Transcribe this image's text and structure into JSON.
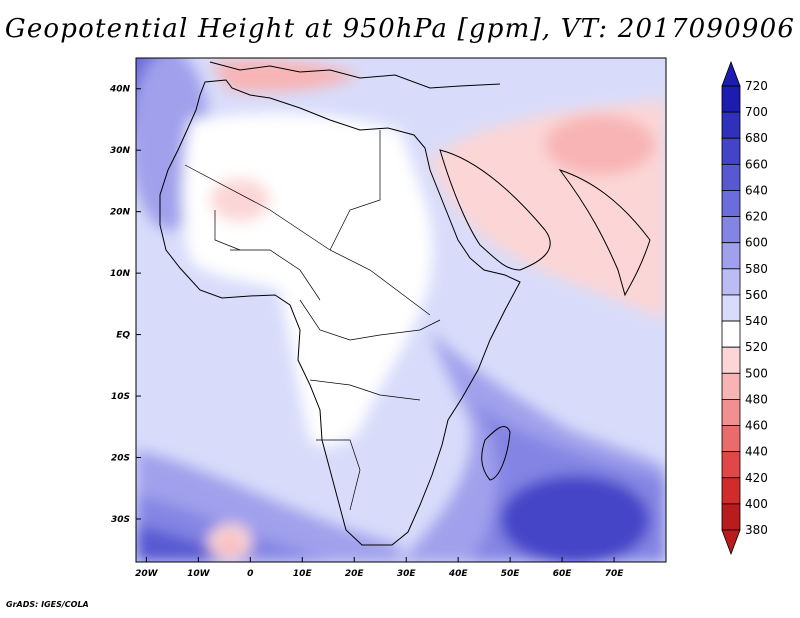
{
  "title": "Geopotential Height at 950hPa [gpm], VT: 2017090906",
  "credit": "GrADS: IGES/COLA",
  "map": {
    "lon_range": [
      -22,
      80
    ],
    "lat_range": [
      -37,
      45
    ],
    "lat_ticks": [
      {
        "value": 40,
        "label": "40N"
      },
      {
        "value": 30,
        "label": "30N"
      },
      {
        "value": 20,
        "label": "20N"
      },
      {
        "value": 10,
        "label": "10N"
      },
      {
        "value": 0,
        "label": "EQ"
      },
      {
        "value": -10,
        "label": "10S"
      },
      {
        "value": -20,
        "label": "20S"
      },
      {
        "value": -30,
        "label": "30S"
      }
    ],
    "lon_ticks": [
      {
        "value": -20,
        "label": "20W"
      },
      {
        "value": -10,
        "label": "10W"
      },
      {
        "value": 0,
        "label": "0"
      },
      {
        "value": 10,
        "label": "10E"
      },
      {
        "value": 20,
        "label": "20E"
      },
      {
        "value": 30,
        "label": "30E"
      },
      {
        "value": 40,
        "label": "40E"
      },
      {
        "value": 50,
        "label": "50E"
      },
      {
        "value": 60,
        "label": "60E"
      },
      {
        "value": 70,
        "label": "70E"
      }
    ],
    "field_base_color": "#d8dcfa"
  },
  "colorbar": {
    "levels": [
      720,
      700,
      680,
      660,
      640,
      620,
      600,
      580,
      560,
      540,
      520,
      500,
      480,
      460,
      440,
      420,
      400,
      380
    ],
    "colors": [
      "#1c1cb0",
      "#3030bc",
      "#4444c8",
      "#5858d2",
      "#6c6cdc",
      "#8484e4",
      "#a0a0ec",
      "#bcbcf4",
      "#d8dcfa",
      "#ffffff",
      "#fcd6d6",
      "#f8b4b4",
      "#f09090",
      "#e86c6c",
      "#e04848",
      "#d02c2c",
      "#b81c1c"
    ],
    "top_cap_color": "#1c1cb0",
    "bottom_cap_color": "#b81c1c"
  }
}
